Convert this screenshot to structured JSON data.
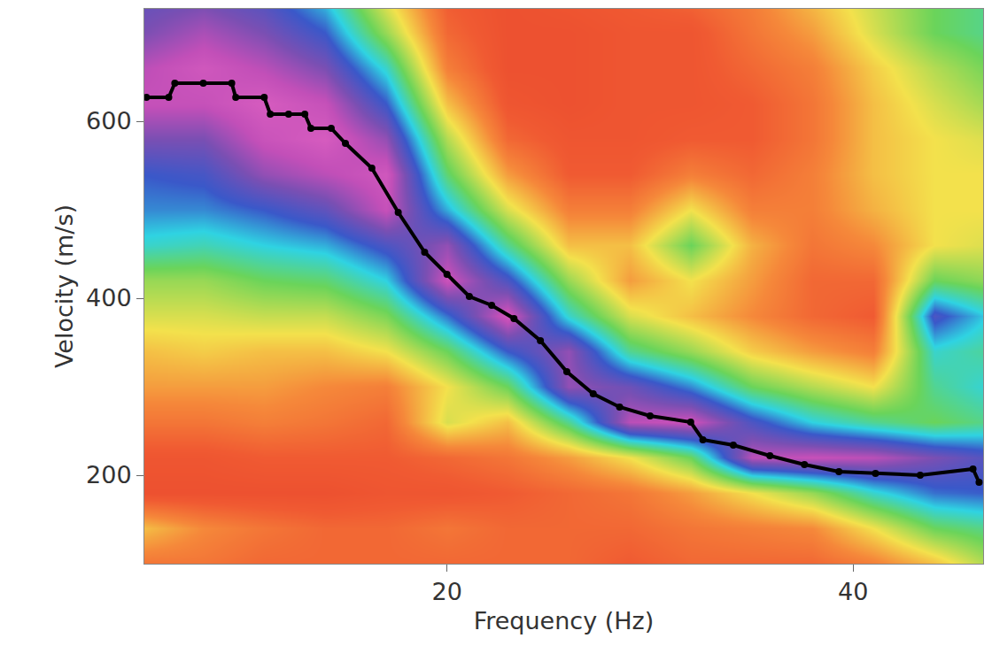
{
  "chart_data": {
    "type": "heatmap",
    "x_label": "Frequency (Hz)",
    "y_label": "Velocity (m/s)",
    "xlim": [
      5.1,
      46.4
    ],
    "ylim": [
      100,
      727
    ],
    "xticks": [
      20,
      40
    ],
    "yticks": [
      200,
      400,
      600
    ],
    "grid": false,
    "heatmap": {
      "x": [
        5,
        8,
        11,
        14,
        17,
        20,
        23,
        26,
        29,
        32,
        35,
        38,
        41,
        44,
        47
      ],
      "y": [
        100,
        140,
        180,
        220,
        260,
        300,
        340,
        380,
        420,
        460,
        500,
        540,
        580,
        620,
        660,
        700,
        740
      ],
      "zlim": [
        0,
        1
      ],
      "z": [
        [
          0.18,
          0.18,
          0.15,
          0.15,
          0.15,
          0.15,
          0.15,
          0.15,
          0.12,
          0.15,
          0.15,
          0.15,
          0.2,
          0.3,
          0.45
        ],
        [
          0.3,
          0.22,
          0.18,
          0.15,
          0.15,
          0.18,
          0.15,
          0.15,
          0.15,
          0.18,
          0.2,
          0.22,
          0.35,
          0.5,
          0.55
        ],
        [
          0.08,
          0.08,
          0.08,
          0.08,
          0.1,
          0.1,
          0.12,
          0.15,
          0.18,
          0.25,
          0.35,
          0.45,
          0.6,
          0.7,
          0.72
        ],
        [
          0.1,
          0.1,
          0.12,
          0.12,
          0.12,
          0.15,
          0.18,
          0.25,
          0.35,
          0.5,
          0.9,
          0.92,
          0.9,
          0.82,
          0.75
        ],
        [
          0.18,
          0.18,
          0.2,
          0.18,
          0.15,
          0.38,
          0.3,
          0.55,
          0.9,
          0.93,
          0.75,
          0.62,
          0.55,
          0.5,
          0.55
        ],
        [
          0.25,
          0.25,
          0.25,
          0.22,
          0.2,
          0.35,
          0.5,
          0.85,
          0.8,
          0.68,
          0.5,
          0.42,
          0.35,
          0.55,
          0.62
        ],
        [
          0.3,
          0.32,
          0.3,
          0.3,
          0.35,
          0.5,
          0.72,
          0.85,
          0.55,
          0.45,
          0.32,
          0.25,
          0.2,
          0.6,
          0.55
        ],
        [
          0.38,
          0.38,
          0.4,
          0.4,
          0.48,
          0.7,
          0.95,
          0.6,
          0.38,
          0.3,
          0.22,
          0.15,
          0.12,
          0.75,
          0.6
        ],
        [
          0.45,
          0.45,
          0.5,
          0.52,
          0.62,
          0.93,
          0.75,
          0.45,
          0.25,
          0.35,
          0.25,
          0.15,
          0.15,
          0.5,
          0.45
        ],
        [
          0.6,
          0.58,
          0.62,
          0.65,
          0.75,
          0.85,
          0.55,
          0.3,
          0.3,
          0.5,
          0.28,
          0.18,
          0.22,
          0.35,
          0.38
        ],
        [
          0.68,
          0.68,
          0.72,
          0.78,
          0.92,
          0.65,
          0.38,
          0.2,
          0.2,
          0.35,
          0.2,
          0.2,
          0.28,
          0.35,
          0.35
        ],
        [
          0.72,
          0.74,
          0.85,
          0.9,
          0.95,
          0.52,
          0.25,
          0.12,
          0.12,
          0.2,
          0.15,
          0.2,
          0.3,
          0.35,
          0.35
        ],
        [
          0.82,
          0.82,
          0.93,
          0.97,
          0.85,
          0.42,
          0.15,
          0.1,
          0.1,
          0.12,
          0.12,
          0.18,
          0.3,
          0.35,
          0.38
        ],
        [
          0.92,
          0.92,
          0.97,
          0.92,
          0.72,
          0.3,
          0.1,
          0.08,
          0.1,
          0.1,
          0.12,
          0.18,
          0.3,
          0.38,
          0.45
        ],
        [
          0.9,
          0.95,
          0.9,
          0.82,
          0.6,
          0.2,
          0.08,
          0.08,
          0.1,
          0.1,
          0.15,
          0.2,
          0.32,
          0.42,
          0.5
        ],
        [
          0.82,
          0.88,
          0.82,
          0.72,
          0.45,
          0.15,
          0.08,
          0.08,
          0.1,
          0.1,
          0.18,
          0.25,
          0.38,
          0.5,
          0.55
        ],
        [
          0.78,
          0.8,
          0.75,
          0.62,
          0.35,
          0.12,
          0.08,
          0.1,
          0.12,
          0.15,
          0.2,
          0.3,
          0.4,
          0.5,
          0.55
        ]
      ]
    },
    "picks": {
      "color": "#000000",
      "marker": "circle",
      "x": [
        5.2,
        6.3,
        6.6,
        8.0,
        9.4,
        9.6,
        11.0,
        11.3,
        12.2,
        13.0,
        13.3,
        14.3,
        15.0,
        16.3,
        17.6,
        18.9,
        20.0,
        21.1,
        22.2,
        23.3,
        24.6,
        25.9,
        27.2,
        28.5,
        30.0,
        32.0,
        32.6,
        34.1,
        35.9,
        37.6,
        39.3,
        41.1,
        43.3,
        45.9,
        46.2
      ],
      "y": [
        627,
        627,
        643,
        643,
        643,
        627,
        627,
        608,
        608,
        608,
        592,
        592,
        575,
        547,
        497,
        452,
        427,
        402,
        392,
        377,
        352,
        317,
        292,
        277,
        267,
        260,
        240,
        234,
        222,
        212,
        204,
        202,
        200,
        207,
        192
      ]
    }
  }
}
